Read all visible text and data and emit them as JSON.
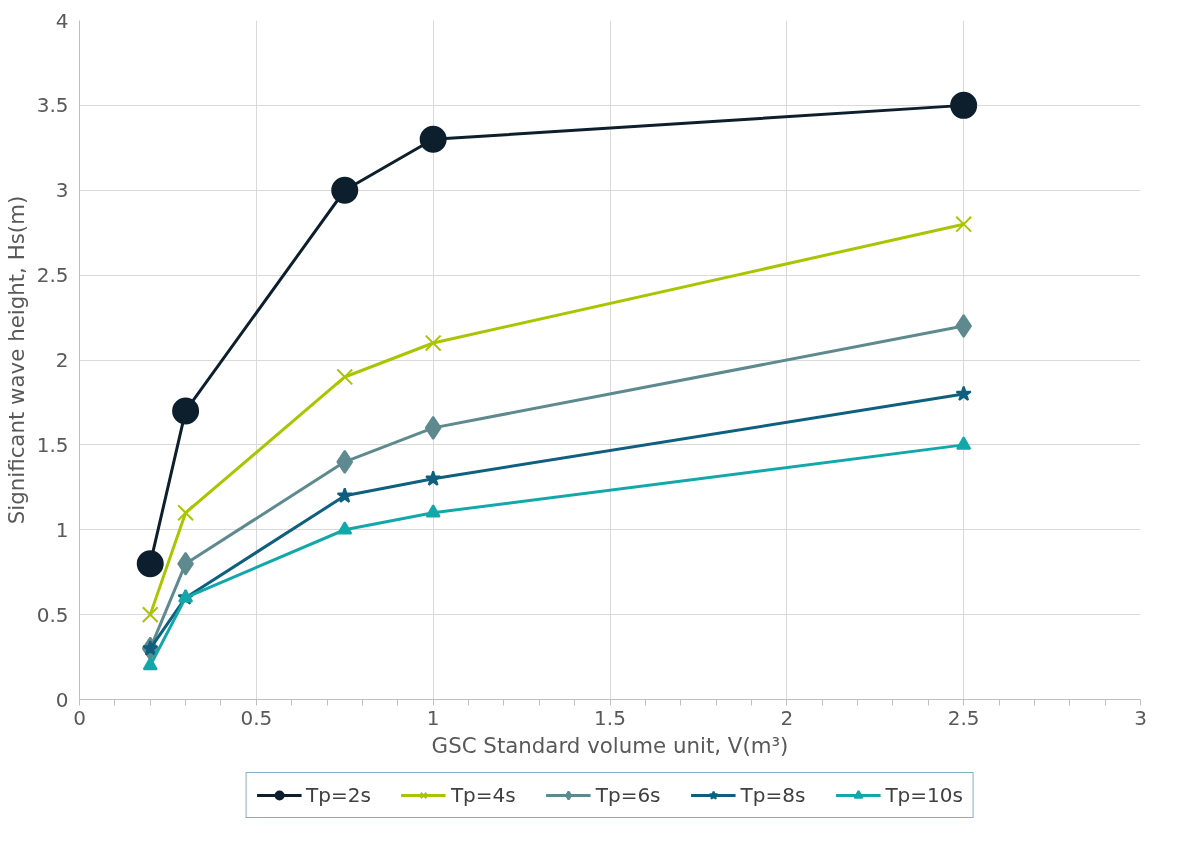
{
  "chart_data": {
    "type": "line",
    "xlabel": "GSC Standard volume unit, V(m³)",
    "ylabel": "Significant wave height, Hs(m)",
    "xlim": [
      0,
      3
    ],
    "xticks": [
      0,
      0.5,
      1,
      1.5,
      2,
      2.5,
      3
    ],
    "ylim": [
      0,
      4
    ],
    "yticks": [
      0,
      0.5,
      1,
      1.5,
      2,
      2.5,
      3,
      3.5,
      4
    ],
    "grid": true,
    "legend": "bottom",
    "line_style": "solid",
    "x": [
      0.2,
      0.3,
      0.75,
      1,
      2.5
    ],
    "series": [
      {
        "name": "Tp=2s",
        "color": "#0d1f2d",
        "marker": "circle",
        "values": [
          0.8,
          1.7,
          3.0,
          3.3,
          3.5
        ]
      },
      {
        "name": "Tp=4s",
        "color": "#a9c500",
        "marker": "cross",
        "values": [
          0.5,
          1.1,
          1.9,
          2.1,
          2.8
        ]
      },
      {
        "name": "Tp=6s",
        "color": "#5e8a8f",
        "marker": "diamond",
        "values": [
          0.3,
          0.8,
          1.4,
          1.6,
          2.2
        ]
      },
      {
        "name": "Tp=8s",
        "color": "#0f5f7f",
        "marker": "star",
        "values": [
          0.3,
          0.6,
          1.2,
          1.3,
          1.8
        ]
      },
      {
        "name": "Tp=10s",
        "color": "#12a8aa",
        "marker": "triangle",
        "values": [
          0.2,
          0.6,
          1.0,
          1.1,
          1.5
        ]
      }
    ]
  }
}
